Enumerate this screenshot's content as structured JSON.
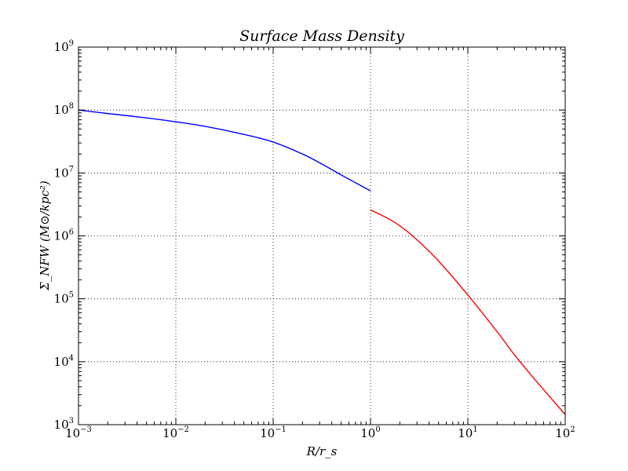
{
  "chart_data": {
    "type": "line",
    "title": "Surface Mass Density",
    "xlabel": "R/r_s",
    "ylabel": "Σ_NFW (M⊙/kpc²)",
    "xscale": "log",
    "yscale": "log",
    "xlim": [
      0.001,
      100
    ],
    "ylim": [
      1000,
      1000000000
    ],
    "grid": true,
    "x_ticks": [
      {
        "base": "10",
        "exp": "−3"
      },
      {
        "base": "10",
        "exp": "−2"
      },
      {
        "base": "10",
        "exp": "−1"
      },
      {
        "base": "10",
        "exp": "0"
      },
      {
        "base": "10",
        "exp": "1"
      },
      {
        "base": "10",
        "exp": "2"
      }
    ],
    "y_ticks": [
      {
        "base": "10",
        "exp": "3"
      },
      {
        "base": "10",
        "exp": "4"
      },
      {
        "base": "10",
        "exp": "5"
      },
      {
        "base": "10",
        "exp": "6"
      },
      {
        "base": "10",
        "exp": "7"
      },
      {
        "base": "10",
        "exp": "8"
      },
      {
        "base": "10",
        "exp": "9"
      }
    ],
    "series": [
      {
        "color": "#0000ff",
        "x": [
          0.001,
          0.002,
          0.005,
          0.01,
          0.02,
          0.05,
          0.1,
          0.2,
          0.3,
          0.5,
          0.7,
          1.0
        ],
        "y": [
          100000000,
          88000000,
          75000000,
          65000000,
          55000000,
          41000000,
          31000000,
          20000000,
          14500000,
          9300000,
          7000000,
          5200000
        ]
      },
      {
        "color": "#ff0000",
        "x": [
          1.0,
          1.5,
          2,
          3,
          5,
          10,
          20,
          30,
          50,
          100
        ],
        "y": [
          2600000,
          1900000,
          1450000,
          870000,
          400000,
          115000,
          30000,
          13000,
          5000,
          1450
        ]
      }
    ]
  }
}
